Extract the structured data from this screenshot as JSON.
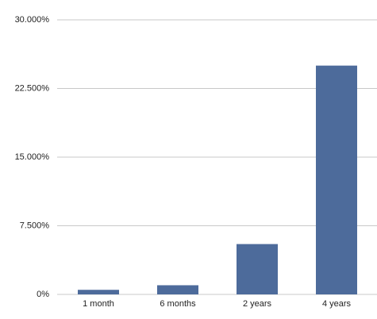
{
  "chart_data": {
    "type": "bar",
    "categories": [
      "1 month",
      "6 months",
      "2 years",
      "4 years"
    ],
    "values": [
      0.5,
      1.0,
      5.5,
      25
    ],
    "color": "#4d6b9b",
    "ylim": [
      0,
      30
    ],
    "yticks": [
      {
        "value": 0,
        "label": "0%"
      },
      {
        "value": 7.5,
        "label": "7.500%"
      },
      {
        "value": 15,
        "label": "15.000%"
      },
      {
        "value": 22.5,
        "label": "22.500%"
      },
      {
        "value": 30,
        "label": "30.000%"
      }
    ],
    "grid": true
  }
}
